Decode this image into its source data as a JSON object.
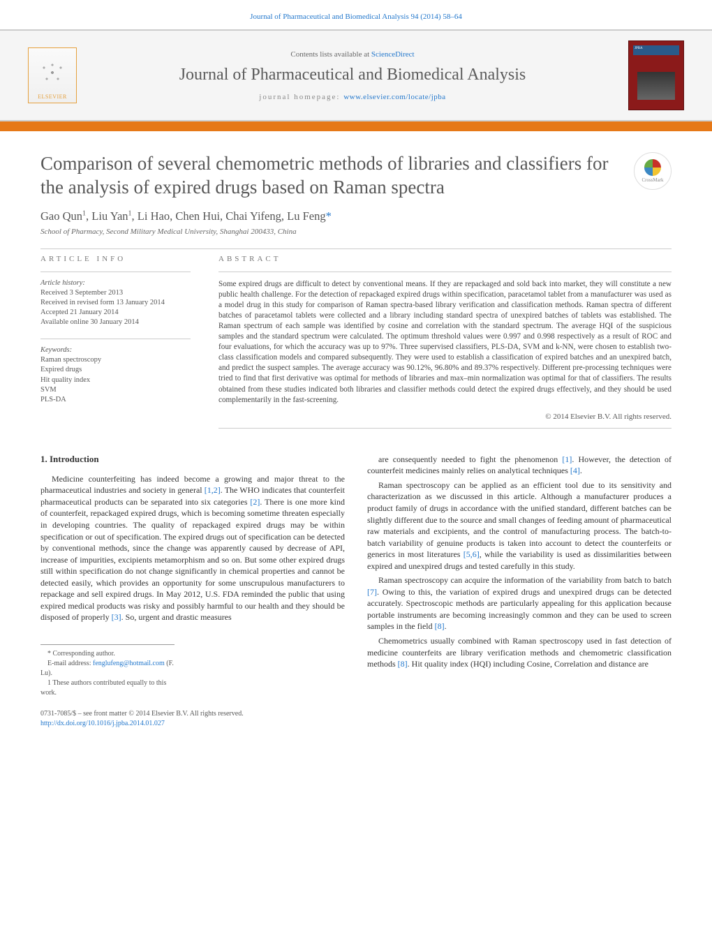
{
  "header": {
    "citation": "Journal of Pharmaceutical and Biomedical Analysis 94 (2014) 58–64",
    "contents_prefix": "Contents lists available at ",
    "contents_link": "ScienceDirect",
    "journal_name": "Journal of Pharmaceutical and Biomedical Analysis",
    "homepage_prefix": "journal homepage: ",
    "homepage_link": "www.elsevier.com/locate/jpba",
    "publisher_logo_text": "ELSEVIER",
    "cover_label": "JPBA"
  },
  "colors": {
    "accent_bar": "#e67817",
    "link": "#2277cc",
    "cover_bg": "#8b1a1a",
    "logo_border": "#e5a03c",
    "title_text": "#575757",
    "body_text": "#333333",
    "muted_text": "#666666",
    "divider": "#cccccc"
  },
  "crossmark": {
    "label": "CrossMark"
  },
  "article": {
    "title": "Comparison of several chemometric methods of libraries and classifiers for the analysis of expired drugs based on Raman spectra",
    "authors_html": "Gao Qun<sup>1</sup>, Liu Yan<sup>1</sup>, Li Hao, Chen Hui, Chai Yifeng, Lu Feng",
    "corr_marker": "*",
    "affiliation": "School of Pharmacy, Second Military Medical University, Shanghai 200433, China"
  },
  "article_info": {
    "heading": "ARTICLE INFO",
    "history_label": "Article history:",
    "history": [
      "Received 3 September 2013",
      "Received in revised form 13 January 2014",
      "Accepted 21 January 2014",
      "Available online 30 January 2014"
    ],
    "keywords_label": "Keywords:",
    "keywords": [
      "Raman spectroscopy",
      "Expired drugs",
      "Hit quality index",
      "SVM",
      "PLS-DA"
    ]
  },
  "abstract": {
    "heading": "ABSTRACT",
    "text": "Some expired drugs are difficult to detect by conventional means. If they are repackaged and sold back into market, they will constitute a new public health challenge. For the detection of repackaged expired drugs within specification, paracetamol tablet from a manufacturer was used as a model drug in this study for comparison of Raman spectra-based library verification and classification methods. Raman spectra of different batches of paracetamol tablets were collected and a library including standard spectra of unexpired batches of tablets was established. The Raman spectrum of each sample was identified by cosine and correlation with the standard spectrum. The average HQI of the suspicious samples and the standard spectrum were calculated. The optimum threshold values were 0.997 and 0.998 respectively as a result of ROC and four evaluations, for which the accuracy was up to 97%. Three supervised classifiers, PLS-DA, SVM and k-NN, were chosen to establish two-class classification models and compared subsequently. They were used to establish a classification of expired batches and an unexpired batch, and predict the suspect samples. The average accuracy was 90.12%, 96.80% and 89.37% respectively. Different pre-processing techniques were tried to find that first derivative was optimal for methods of libraries and max–min normalization was optimal for that of classifiers. The results obtained from these studies indicated both libraries and classifier methods could detect the expired drugs effectively, and they should be used complementarily in the fast-screening.",
    "copyright": "© 2014 Elsevier B.V. All rights reserved."
  },
  "body": {
    "section_number": "1.",
    "section_title": "Introduction",
    "left_para": "Medicine counterfeiting has indeed become a growing and major threat to the pharmaceutical industries and society in general [1,2]. The WHO indicates that counterfeit pharmaceutical products can be separated into six categories [2]. There is one more kind of counterfeit, repackaged expired drugs, which is becoming sometime threaten especially in developing countries. The quality of repackaged expired drugs may be within specification or out of specification. The expired drugs out of specification can be detected by conventional methods, since the change was apparently caused by decrease of API, increase of impurities, excipients metamorphism and so on. But some other expired drugs still within specification do not change significantly in chemical properties and cannot be detected easily, which provides an opportunity for some unscrupulous manufacturers to repackage and sell expired drugs. In May 2012, U.S. FDA reminded the public that using expired medical products was risky and possibly harmful to our health and they should be disposed of properly [3]. So, urgent and drastic measures",
    "right_paras": [
      "are consequently needed to fight the phenomenon [1]. However, the detection of counterfeit medicines mainly relies on analytical techniques [4].",
      "Raman spectroscopy can be applied as an efficient tool due to its sensitivity and characterization as we discussed in this article. Although a manufacturer produces a product family of drugs in accordance with the unified standard, different batches can be slightly different due to the source and small changes of feeding amount of pharmaceutical raw materials and excipients, and the control of manufacturing process. The batch-to-batch variability of genuine products is taken into account to detect the counterfeits or generics in most literatures [5,6], while the variability is used as dissimilarities between expired and unexpired drugs and tested carefully in this study.",
      "Raman spectroscopy can acquire the information of the variability from batch to batch [7]. Owing to this, the variation of expired drugs and unexpired drugs can be detected accurately. Spectroscopic methods are particularly appealing for this application because portable instruments are becoming increasingly common and they can be used to screen samples in the field [8].",
      "Chemometrics usually combined with Raman spectroscopy used in fast detection of medicine counterfeits are library verification methods and chemometric classification methods [8]. Hit quality index (HQI) including Cosine, Correlation and distance are"
    ],
    "refs": {
      "r12": "[1,2]",
      "r2": "[2]",
      "r3": "[3]",
      "r1": "[1]",
      "r4": "[4]",
      "r56": "[5,6]",
      "r7": "[7]",
      "r8": "[8]"
    }
  },
  "footnotes": {
    "corr": "* Corresponding author.",
    "email_label": "E-mail address: ",
    "email": "fenglufeng@hotmail.com",
    "email_suffix": " (F. Lu).",
    "equal": "1 These authors contributed equally to this work."
  },
  "footer": {
    "issn_line": "0731-7085/$ – see front matter © 2014 Elsevier B.V. All rights reserved.",
    "doi": "http://dx.doi.org/10.1016/j.jpba.2014.01.027"
  }
}
